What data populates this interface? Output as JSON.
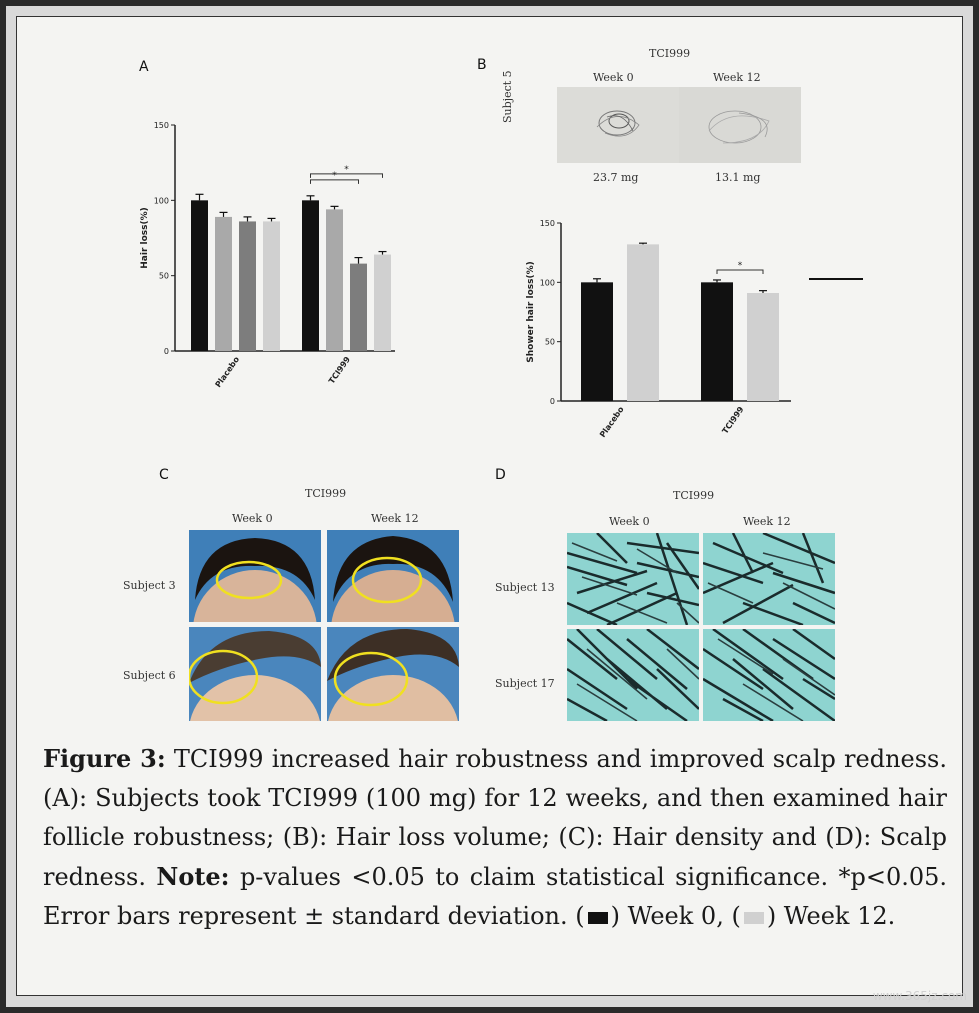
{
  "panels": {
    "a": {
      "label": "A"
    },
    "b": {
      "label": "B",
      "title": "TCI999",
      "week0": "Week 0",
      "week12": "Week 12",
      "subject": "Subject 5",
      "mass0": "23.7 mg",
      "mass12": "13.1 mg"
    },
    "c": {
      "label": "C",
      "title": "TCI999",
      "week0": "Week 0",
      "week12": "Week 12",
      "subject1": "Subject 3",
      "subject2": "Subject 6"
    },
    "d": {
      "label": "D",
      "title": "TCI999",
      "week0": "Week 0",
      "week12": "Week 12",
      "subject1": "Subject 13",
      "subject2": "Subject 17"
    }
  },
  "chart_data": [
    {
      "type": "bar",
      "panel": "A",
      "categories": [
        "Placebo",
        "TCI999"
      ],
      "series": [
        {
          "values": [
            100,
            100
          ],
          "errors": [
            4,
            3
          ],
          "color": "#111111"
        },
        {
          "values": [
            89,
            94
          ],
          "errors": [
            3,
            2
          ],
          "color": "#a9a9a9"
        },
        {
          "values": [
            86,
            58
          ],
          "errors": [
            3,
            4
          ],
          "color": "#7d7d7d"
        },
        {
          "values": [
            86,
            64
          ],
          "errors": [
            2,
            2
          ],
          "color": "#d0d0d0"
        }
      ],
      "ylabel": "Hair loss(%)",
      "ylim": [
        0,
        150
      ],
      "yticks": [
        0,
        50,
        100,
        150
      ],
      "significance": [
        {
          "category": "TCI999",
          "from": 0,
          "to": 2,
          "mark": "*"
        },
        {
          "category": "TCI999",
          "from": 0,
          "to": 3,
          "mark": "*"
        }
      ]
    },
    {
      "type": "bar",
      "panel": "B",
      "categories": [
        "Placebo",
        "TCI999"
      ],
      "series": [
        {
          "values": [
            100,
            100
          ],
          "errors": [
            3,
            2
          ],
          "color": "#111111"
        },
        {
          "values": [
            132,
            91
          ],
          "errors": [
            1,
            2
          ],
          "color": "#d0d0d0"
        }
      ],
      "ylabel": "Shower hair loss(%)",
      "ylim": [
        0,
        150
      ],
      "yticks": [
        0,
        50,
        100,
        150
      ],
      "significance": [
        {
          "category": "TCI999",
          "from": 0,
          "to": 1,
          "mark": "*"
        }
      ]
    }
  ],
  "caption": {
    "fig_label": "Figure 3:",
    "text1": " TCI999 increased hair robustness and improved scalp redness. (A): Subjects took TCI999 (100 mg) for 12 weeks, and then examined hair follicle robustness; (B): Hair loss volume; (C): Hair density and (D): Scalp redness. ",
    "note_label": "Note:",
    "text2": " p-values <0.05 to claim statistical significance. *p<0.05. Error bars represent ± standard deviation. (",
    "text3": ") Week 0, (",
    "text4": ") Week 12.",
    "swatch_dark": "#111111",
    "swatch_light": "#d0d0d0"
  },
  "watermark": "www.365jz.com"
}
